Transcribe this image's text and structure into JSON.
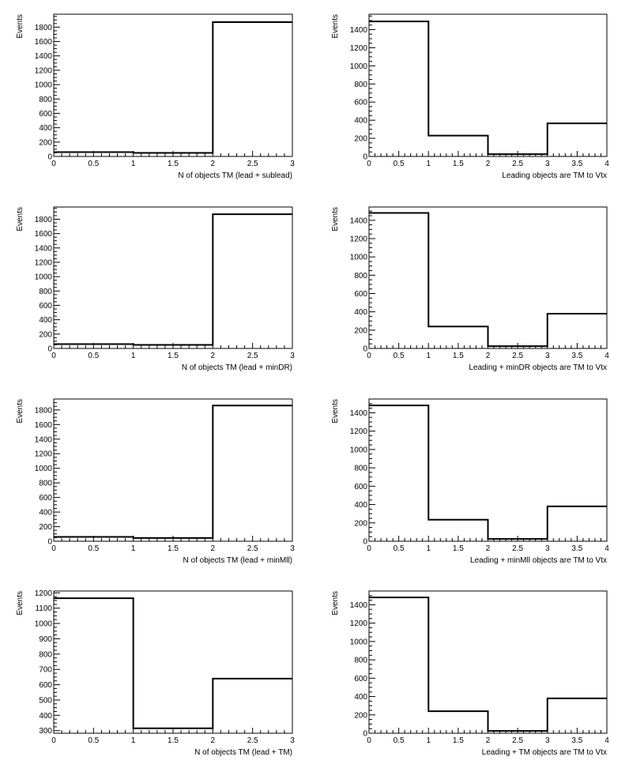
{
  "chart_data": [
    {
      "type": "histogram",
      "xlabel": "N of objects TM (lead + sublead)",
      "ylabel": "Events",
      "bin_edges": [
        0,
        1,
        2,
        3
      ],
      "values": [
        60,
        50,
        1870
      ],
      "xlim": [
        0,
        3
      ],
      "ylim": [
        0,
        1980
      ],
      "x_ticks": [
        0,
        0.5,
        1,
        1.5,
        2,
        2.5,
        3
      ],
      "y_ticks": [
        0,
        200,
        400,
        600,
        800,
        1000,
        1200,
        1400,
        1600,
        1800
      ],
      "grid": false
    },
    {
      "type": "histogram",
      "xlabel": "Leading objects are TM to Vtx",
      "ylabel": "Events",
      "bin_edges": [
        0,
        1,
        2,
        3,
        4
      ],
      "values": [
        1490,
        230,
        25,
        365
      ],
      "xlim": [
        0,
        4
      ],
      "ylim": [
        0,
        1570
      ],
      "x_ticks": [
        0,
        0.5,
        1,
        1.5,
        2,
        2.5,
        3,
        3.5,
        4
      ],
      "y_ticks": [
        0,
        200,
        400,
        600,
        800,
        1000,
        1200,
        1400
      ],
      "grid": false
    },
    {
      "type": "histogram",
      "xlabel": "N of objects TM (lead + minDR)",
      "ylabel": "Events",
      "bin_edges": [
        0,
        1,
        2,
        3
      ],
      "values": [
        60,
        50,
        1870
      ],
      "xlim": [
        0,
        3
      ],
      "ylim": [
        0,
        1970
      ],
      "x_ticks": [
        0,
        0.5,
        1,
        1.5,
        2,
        2.5,
        3
      ],
      "y_ticks": [
        0,
        200,
        400,
        600,
        800,
        1000,
        1200,
        1400,
        1600,
        1800
      ],
      "grid": false
    },
    {
      "type": "histogram",
      "xlabel": "Leading + minDR objects are TM to Vtx",
      "ylabel": "Events",
      "bin_edges": [
        0,
        1,
        2,
        3,
        4
      ],
      "values": [
        1480,
        240,
        25,
        380
      ],
      "xlim": [
        0,
        4
      ],
      "ylim": [
        0,
        1545
      ],
      "x_ticks": [
        0,
        0.5,
        1,
        1.5,
        2,
        2.5,
        3,
        3.5,
        4
      ],
      "y_ticks": [
        0,
        200,
        400,
        600,
        800,
        1000,
        1200,
        1400
      ],
      "grid": false
    },
    {
      "type": "histogram",
      "xlabel": "N of objects TM (lead + minMll)",
      "ylabel": "Events",
      "bin_edges": [
        0,
        1,
        2,
        3
      ],
      "values": [
        60,
        45,
        1860
      ],
      "xlim": [
        0,
        3
      ],
      "ylim": [
        0,
        1950
      ],
      "x_ticks": [
        0,
        0.5,
        1,
        1.5,
        2,
        2.5,
        3
      ],
      "y_ticks": [
        0,
        200,
        400,
        600,
        800,
        1000,
        1200,
        1400,
        1600,
        1800
      ],
      "grid": false
    },
    {
      "type": "histogram",
      "xlabel": "Leading + minMll objects are TM to Vtx",
      "ylabel": "Events",
      "bin_edges": [
        0,
        1,
        2,
        3,
        4
      ],
      "values": [
        1480,
        235,
        25,
        380
      ],
      "xlim": [
        0,
        4
      ],
      "ylim": [
        0,
        1550
      ],
      "x_ticks": [
        0,
        0.5,
        1,
        1.5,
        2,
        2.5,
        3,
        3.5,
        4
      ],
      "y_ticks": [
        0,
        200,
        400,
        600,
        800,
        1000,
        1200,
        1400
      ],
      "grid": false
    },
    {
      "type": "histogram",
      "xlabel": "N of objects TM (lead + TM)",
      "ylabel": "Events",
      "bin_edges": [
        0,
        1,
        2,
        3
      ],
      "values": [
        1165,
        315,
        640
      ],
      "xlim": [
        0,
        3
      ],
      "ylim": [
        283,
        1212
      ],
      "x_ticks": [
        0,
        0.5,
        1,
        1.5,
        2,
        2.5,
        3
      ],
      "y_ticks": [
        300,
        400,
        500,
        600,
        700,
        800,
        900,
        1000,
        1100,
        1200
      ],
      "grid": false
    },
    {
      "type": "histogram",
      "xlabel": "Leading + TM objects are TM to Vtx",
      "ylabel": "Events",
      "bin_edges": [
        0,
        1,
        2,
        3,
        4
      ],
      "values": [
        1480,
        240,
        25,
        380
      ],
      "xlim": [
        0,
        4
      ],
      "ylim": [
        0,
        1550
      ],
      "x_ticks": [
        0,
        0.5,
        1,
        1.5,
        2,
        2.5,
        3,
        3.5,
        4
      ],
      "y_ticks": [
        0,
        200,
        400,
        600,
        800,
        1000,
        1200,
        1400
      ],
      "grid": false
    }
  ]
}
